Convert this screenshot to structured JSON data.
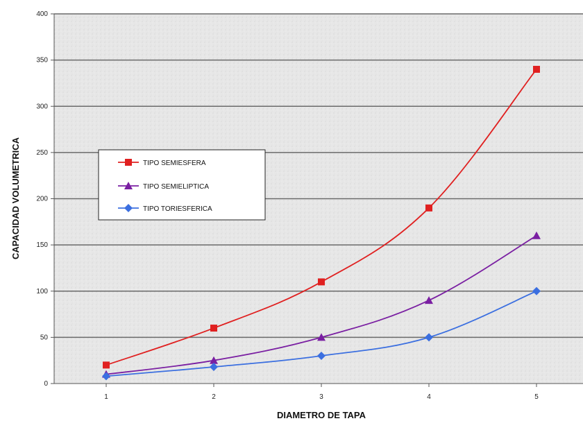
{
  "chart_data": {
    "type": "line",
    "title": "",
    "xlabel": "DIAMETRO DE TAPA",
    "ylabel": "CAPACIDAD VOLUMETRICA",
    "categories": [
      "1",
      "2",
      "3",
      "4",
      "5"
    ],
    "ylim": [
      0,
      400
    ],
    "yticks": [
      "0",
      "50",
      "100",
      "150",
      "200",
      "250",
      "300",
      "350",
      "400"
    ],
    "grid": true,
    "legend": "left",
    "series": [
      {
        "name": "TIPO SEMIESFERA",
        "values": [
          20,
          60,
          110,
          190,
          340
        ],
        "color": "#e02020",
        "marker": "square"
      },
      {
        "name": "TIPO SEMIELIPTICA",
        "values": [
          10,
          25,
          50,
          90,
          160
        ],
        "color": "#7a1fa2",
        "marker": "triangle"
      },
      {
        "name": "TIPO TORIESFERICA",
        "values": [
          8,
          18,
          30,
          50,
          100
        ],
        "color": "#3b6fe0",
        "marker": "diamond"
      }
    ]
  }
}
